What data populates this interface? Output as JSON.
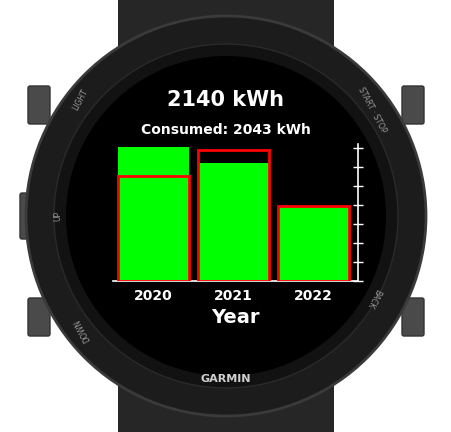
{
  "chart_data": {
    "type": "bar",
    "title": "2140 kWh",
    "subtitle": "Consumed: 2043 kWh",
    "x_label": "Year",
    "categories": [
      "2020",
      "2021",
      "2022"
    ],
    "series": [
      {
        "type": "bar",
        "color": "#00ff00",
        "values": [
          880,
          775,
          485
        ]
      },
      {
        "type": "bar",
        "color": "#ff0000",
        "line_style": "solid",
        "values": [
          690,
          860,
          493
        ]
      }
    ],
    "ylim": [
      0,
      900
    ],
    "yticks": [
      0,
      125,
      250,
      375,
      500,
      625,
      750,
      875
    ],
    "grid": false,
    "tick_labels": "x"
  },
  "device": {
    "brand": "GARMIN",
    "buttons": [
      "LIGHT",
      "START · STOP",
      "UP",
      "DOWN",
      "BACK"
    ]
  }
}
